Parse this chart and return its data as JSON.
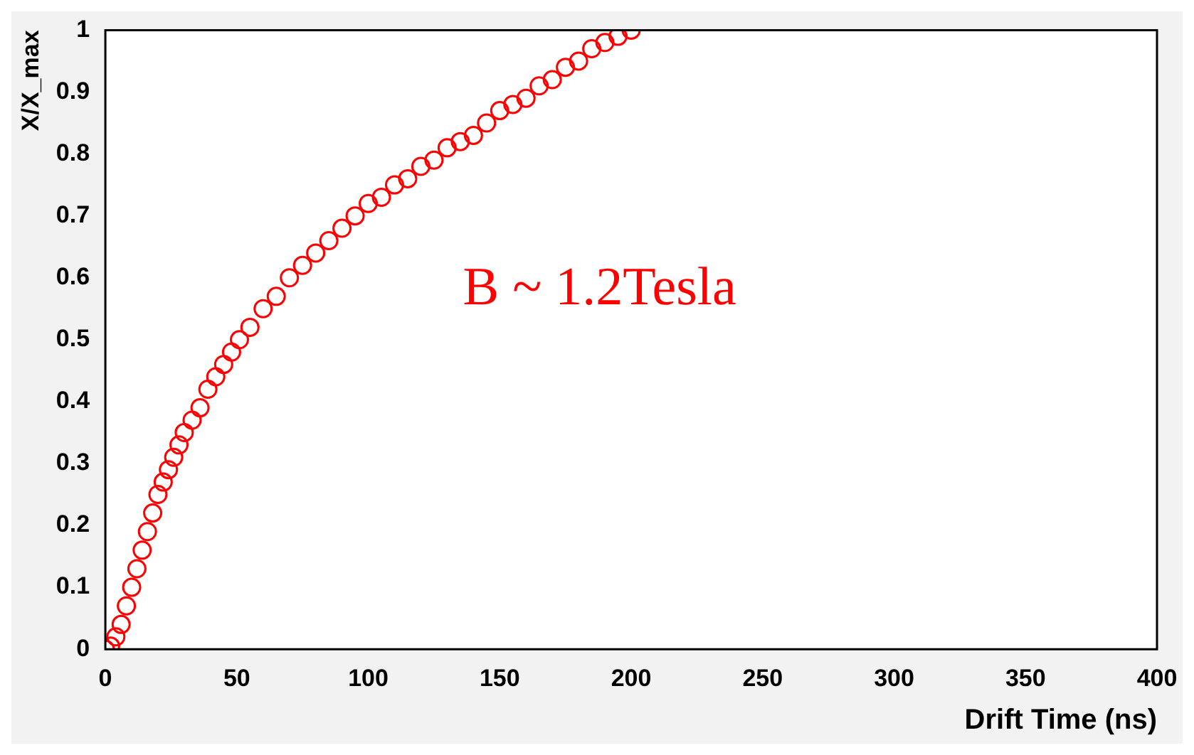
{
  "chart_data": {
    "type": "scatter",
    "xlabel": "Drift Time (ns)",
    "ylabel": "X/X_max",
    "annotations": [
      "B ~ 1.2Tesla"
    ],
    "xlim": [
      0,
      400
    ],
    "xticks": [
      0,
      50,
      100,
      150,
      200,
      250,
      300,
      350,
      400
    ],
    "ylim": [
      0,
      1
    ],
    "yticks": [
      0,
      0.1,
      0.2,
      0.3,
      0.4,
      0.5,
      0.6,
      0.7,
      0.8,
      0.9,
      1
    ],
    "grid": false,
    "legend": false,
    "marker": "circle",
    "series": [
      {
        "color": "#ff0000",
        "x": [
          0,
          2,
          4,
          6,
          8,
          10,
          12,
          14,
          16,
          18,
          20,
          22,
          24,
          26,
          28,
          30,
          33,
          36,
          39,
          42,
          45,
          48,
          51,
          55,
          60,
          65,
          70,
          75,
          80,
          85,
          90,
          95,
          100,
          105,
          110,
          115,
          120,
          125,
          130,
          135,
          140,
          145,
          150,
          155,
          160,
          165,
          170,
          175,
          180,
          185,
          190,
          195,
          200
        ],
        "values": [
          0,
          0.005,
          0.02,
          0.04,
          0.07,
          0.1,
          0.13,
          0.16,
          0.19,
          0.22,
          0.25,
          0.27,
          0.29,
          0.31,
          0.33,
          0.35,
          0.37,
          0.39,
          0.42,
          0.44,
          0.46,
          0.48,
          0.5,
          0.52,
          0.55,
          0.57,
          0.6,
          0.62,
          0.64,
          0.66,
          0.68,
          0.7,
          0.72,
          0.73,
          0.75,
          0.76,
          0.78,
          0.79,
          0.81,
          0.82,
          0.83,
          0.85,
          0.87,
          0.88,
          0.89,
          0.91,
          0.92,
          0.94,
          0.95,
          0.97,
          0.98,
          0.99,
          1.0
        ]
      }
    ]
  }
}
